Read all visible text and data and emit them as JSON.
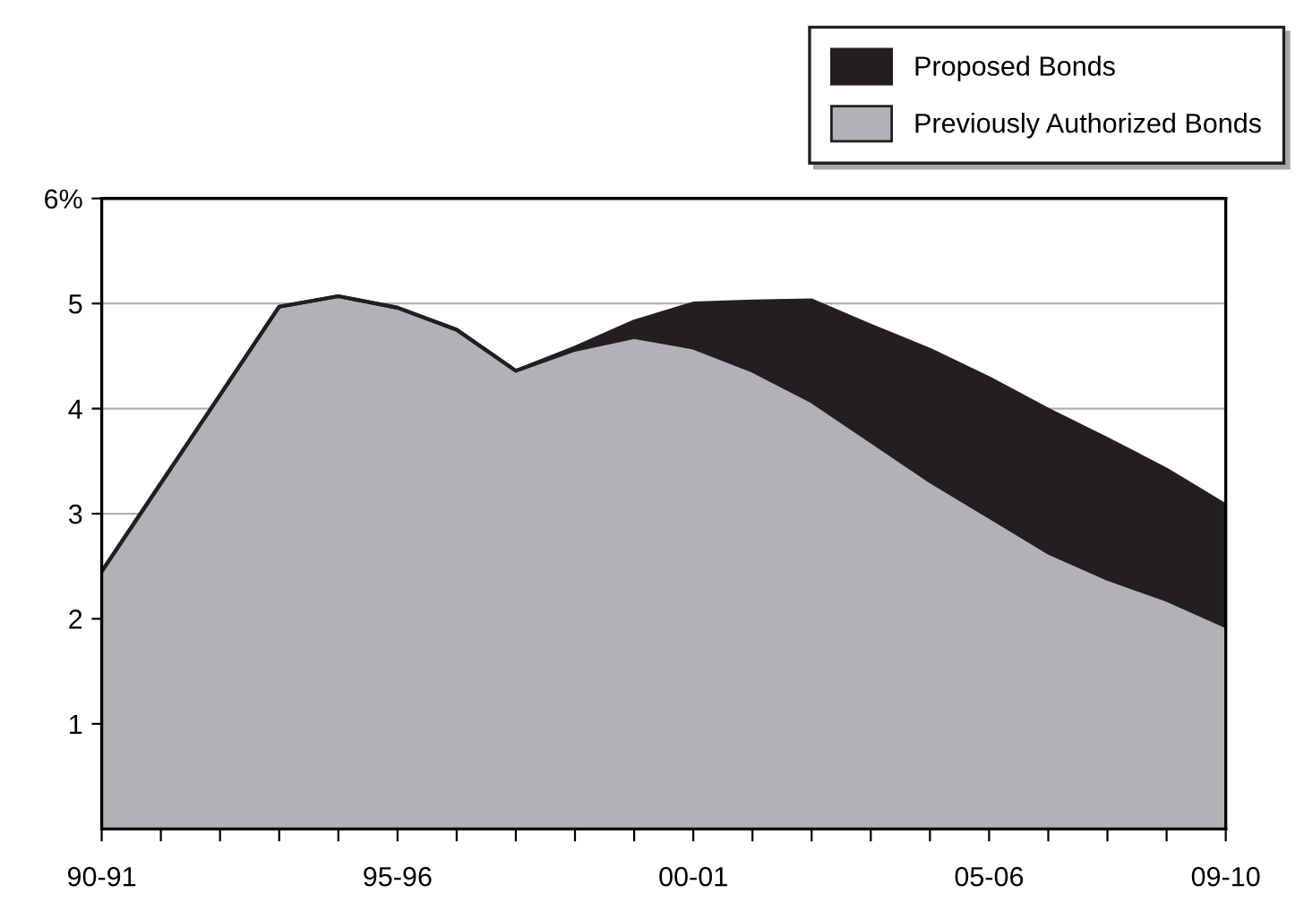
{
  "chart_data": {
    "type": "area",
    "stacked": true,
    "categories": [
      "90-91",
      null,
      null,
      null,
      null,
      "95-96",
      null,
      null,
      null,
      null,
      "00-01",
      null,
      null,
      null,
      null,
      "05-06",
      null,
      null,
      null,
      "09-10"
    ],
    "series": [
      {
        "name": "Previously Authorized Bonds",
        "color": "#b1b2b6",
        "values": [
          2.45,
          3.29,
          4.13,
          4.97,
          5.07,
          4.96,
          4.75,
          4.36,
          4.56,
          4.68,
          4.58,
          4.36,
          4.07,
          3.69,
          3.31,
          2.97,
          2.63,
          2.38,
          2.18,
          1.93
        ]
      },
      {
        "name": "Proposed Bonds",
        "color": "#231f20",
        "values": [
          0,
          0,
          0,
          0,
          0,
          0,
          0,
          0,
          0.02,
          0.15,
          0.42,
          0.66,
          0.96,
          1.1,
          1.25,
          1.32,
          1.36,
          1.33,
          1.24,
          1.15
        ]
      }
    ],
    "ylim": [
      0,
      6
    ],
    "yticks": [
      1,
      2,
      3,
      4,
      5,
      {
        "value": 6,
        "label": "6%"
      }
    ],
    "grid": "y",
    "legend": "top right"
  }
}
